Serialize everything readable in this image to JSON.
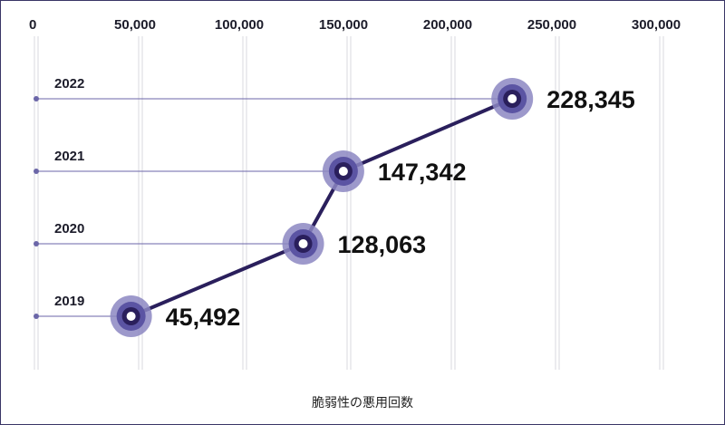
{
  "chart_data": {
    "type": "line",
    "title": "",
    "xlabel": "",
    "ylabel": "",
    "x_ticks": [
      "0",
      "50,000",
      "100,000",
      "150,000",
      "200,000",
      "250,000",
      "300,000"
    ],
    "x_tick_values": [
      0,
      50000,
      100000,
      150000,
      200000,
      250000,
      300000
    ],
    "xlim": [
      0,
      300000
    ],
    "categories": [
      "2019",
      "2020",
      "2021",
      "2022"
    ],
    "values": [
      45492,
      128063,
      147342,
      228345
    ],
    "data_labels": [
      "45,492",
      "128,063",
      "147,342",
      "228,345"
    ],
    "caption": "脆弱性の悪用回数",
    "colors": {
      "line": "#2a1f5c",
      "marker_outer": "#8c87c2",
      "marker_mid": "#5b54a3",
      "marker_inner": "#2a1f5c",
      "guide": "#6b66a8",
      "grid": "#d9d9df"
    },
    "grid": true,
    "legend": "none"
  }
}
